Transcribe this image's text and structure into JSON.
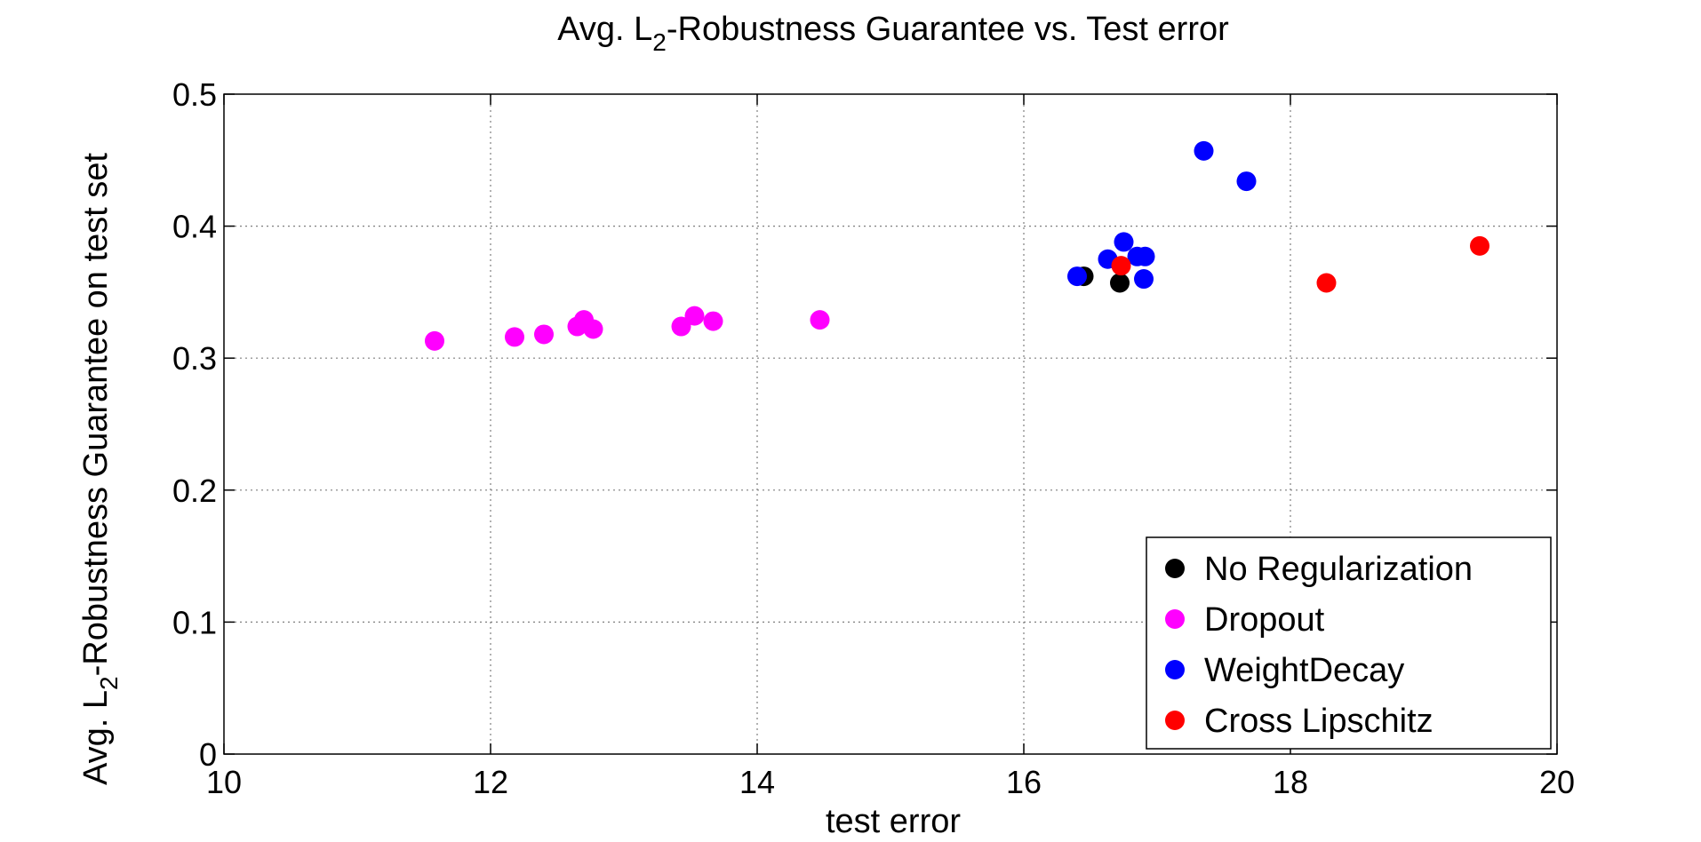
{
  "chart_data": {
    "type": "scatter",
    "title": {
      "prefix": "Avg. L",
      "subscript": "2",
      "suffix": "-Robustness Guarantee vs. Test error"
    },
    "xlabel": "test error",
    "ylabel": {
      "prefix": "Avg. L",
      "subscript": "2",
      "suffix": "-Robustness Guarantee on test set"
    },
    "xlim": [
      10,
      20
    ],
    "ylim": [
      0,
      0.5
    ],
    "xticks": [
      10,
      12,
      14,
      16,
      18,
      20
    ],
    "yticks": [
      0,
      0.1,
      0.2,
      0.3,
      0.4,
      0.5
    ],
    "xtick_labels": [
      "10",
      "12",
      "14",
      "16",
      "18",
      "20"
    ],
    "ytick_labels": [
      "0",
      "0.1",
      "0.2",
      "0.3",
      "0.4",
      "0.5"
    ],
    "grid": true,
    "legend_position": "bottom-right",
    "series": [
      {
        "name": "No Regularization",
        "color": "#000000",
        "points": [
          [
            16.45,
            0.362
          ],
          [
            16.72,
            0.357
          ]
        ]
      },
      {
        "name": "Dropout",
        "color": "#ff00ff",
        "points": [
          [
            11.58,
            0.313
          ],
          [
            12.18,
            0.316
          ],
          [
            12.4,
            0.318
          ],
          [
            12.65,
            0.324
          ],
          [
            12.7,
            0.329
          ],
          [
            12.77,
            0.322
          ],
          [
            13.43,
            0.324
          ],
          [
            13.53,
            0.332
          ],
          [
            13.67,
            0.328
          ],
          [
            14.47,
            0.329
          ]
        ]
      },
      {
        "name": "WeightDecay",
        "color": "#0000ff",
        "points": [
          [
            16.4,
            0.362
          ],
          [
            16.63,
            0.375
          ],
          [
            16.75,
            0.388
          ],
          [
            16.85,
            0.377
          ],
          [
            16.91,
            0.377
          ],
          [
            16.9,
            0.36
          ],
          [
            17.35,
            0.457
          ],
          [
            17.67,
            0.434
          ]
        ]
      },
      {
        "name": "Cross Lipschitz",
        "color": "#ff0000",
        "points": [
          [
            16.73,
            0.37
          ],
          [
            18.27,
            0.357
          ],
          [
            19.42,
            0.385
          ]
        ]
      }
    ]
  }
}
